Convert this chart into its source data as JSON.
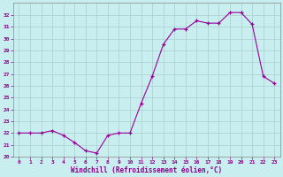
{
  "x": [
    0,
    1,
    2,
    3,
    4,
    5,
    6,
    7,
    8,
    9,
    10,
    11,
    12,
    13,
    14,
    15,
    16,
    17,
    18,
    19,
    20,
    21,
    22,
    23
  ],
  "y": [
    22,
    22,
    22,
    22.2,
    21.8,
    21.2,
    20.5,
    20.3,
    21.8,
    22,
    22,
    24.5,
    26.8,
    29.5,
    30.8,
    30.8,
    31.5,
    31.3,
    31.3,
    32.2,
    32.2,
    31.2,
    26.8,
    26.2
  ],
  "xlabel": "Windchill (Refroidissement éolien,°C)",
  "xlim": [
    -0.5,
    23.5
  ],
  "ylim": [
    20,
    33
  ],
  "yticks": [
    20,
    21,
    22,
    23,
    24,
    25,
    26,
    27,
    28,
    29,
    30,
    31,
    32
  ],
  "xticks": [
    0,
    1,
    2,
    3,
    4,
    5,
    6,
    7,
    8,
    9,
    10,
    11,
    12,
    13,
    14,
    15,
    16,
    17,
    18,
    19,
    20,
    21,
    22,
    23
  ],
  "line_color": "#990099",
  "marker": "+",
  "bg_color": "#c8eef0",
  "grid_color": "#aacccc",
  "label_color": "#880088",
  "spine_color": "#888888",
  "tick_labelsize": 4.5,
  "xlabel_fontsize": 5.5,
  "linewidth": 0.8,
  "markersize": 3.0
}
